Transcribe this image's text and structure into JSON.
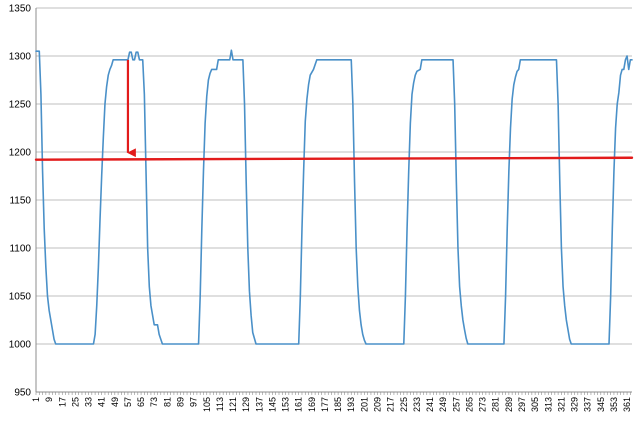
{
  "chart_data": {
    "type": "line",
    "title": "",
    "xlabel": "",
    "ylabel": "",
    "ylim": [
      950,
      1350
    ],
    "yticks": [
      950,
      1000,
      1050,
      1100,
      1150,
      1200,
      1250,
      1300,
      1350
    ],
    "xlim": [
      1,
      364
    ],
    "xticks": [
      "1",
      "9",
      "17",
      "25",
      "33",
      "41",
      "49",
      "57",
      "65",
      "73",
      "81",
      "89",
      "97",
      "105",
      "113",
      "121",
      "129",
      "137",
      "145",
      "153",
      "161",
      "169",
      "177",
      "185",
      "193",
      "201",
      "209",
      "217",
      "225",
      "233",
      "241",
      "249",
      "257",
      "265",
      "273",
      "281",
      "289",
      "297",
      "305",
      "313",
      "321",
      "329",
      "337",
      "345",
      "353",
      "361"
    ],
    "grid": "horizontal",
    "legend": "none",
    "series": [
      {
        "color": "#4a90c8",
        "points": [
          [
            1,
            1305
          ],
          [
            3,
            1305
          ],
          [
            4,
            1260
          ],
          [
            5,
            1180
          ],
          [
            6,
            1120
          ],
          [
            7,
            1080
          ],
          [
            8,
            1050
          ],
          [
            9,
            1035
          ],
          [
            10,
            1025
          ],
          [
            11,
            1015
          ],
          [
            12,
            1005
          ],
          [
            13,
            1000
          ],
          [
            20,
            1000
          ],
          [
            30,
            1000
          ],
          [
            36,
            1000
          ],
          [
            37,
            1010
          ],
          [
            38,
            1040
          ],
          [
            39,
            1080
          ],
          [
            40,
            1130
          ],
          [
            41,
            1175
          ],
          [
            42,
            1215
          ],
          [
            43,
            1250
          ],
          [
            44,
            1268
          ],
          [
            45,
            1280
          ],
          [
            46,
            1286
          ],
          [
            47,
            1290
          ],
          [
            48,
            1296
          ],
          [
            57,
            1296
          ],
          [
            58,
            1304
          ],
          [
            59,
            1304
          ],
          [
            60,
            1296
          ],
          [
            61,
            1296
          ],
          [
            62,
            1304
          ],
          [
            63,
            1304
          ],
          [
            64,
            1296
          ],
          [
            66,
            1296
          ],
          [
            67,
            1260
          ],
          [
            68,
            1180
          ],
          [
            69,
            1100
          ],
          [
            70,
            1060
          ],
          [
            71,
            1040
          ],
          [
            72,
            1030
          ],
          [
            73,
            1020
          ],
          [
            75,
            1020
          ],
          [
            76,
            1010
          ],
          [
            77,
            1005
          ],
          [
            78,
            1000
          ],
          [
            85,
            1000
          ],
          [
            100,
            1000
          ],
          [
            101,
            1050
          ],
          [
            102,
            1120
          ],
          [
            103,
            1180
          ],
          [
            104,
            1230
          ],
          [
            105,
            1258
          ],
          [
            106,
            1275
          ],
          [
            107,
            1282
          ],
          [
            108,
            1286
          ],
          [
            111,
            1286
          ],
          [
            112,
            1296
          ],
          [
            119,
            1296
          ],
          [
            120,
            1306
          ],
          [
            121,
            1296
          ],
          [
            127,
            1296
          ],
          [
            128,
            1250
          ],
          [
            129,
            1170
          ],
          [
            130,
            1100
          ],
          [
            131,
            1055
          ],
          [
            132,
            1030
          ],
          [
            133,
            1012
          ],
          [
            134,
            1006
          ],
          [
            135,
            1000
          ],
          [
            150,
            1000
          ],
          [
            161,
            1000
          ],
          [
            162,
            1050
          ],
          [
            163,
            1120
          ],
          [
            164,
            1180
          ],
          [
            165,
            1232
          ],
          [
            166,
            1255
          ],
          [
            167,
            1270
          ],
          [
            168,
            1280
          ],
          [
            169,
            1283
          ],
          [
            170,
            1286
          ],
          [
            172,
            1296
          ],
          [
            193,
            1296
          ],
          [
            194,
            1250
          ],
          [
            195,
            1170
          ],
          [
            196,
            1100
          ],
          [
            197,
            1060
          ],
          [
            198,
            1035
          ],
          [
            199,
            1020
          ],
          [
            200,
            1010
          ],
          [
            201,
            1004
          ],
          [
            202,
            1000
          ],
          [
            220,
            1000
          ],
          [
            225,
            1000
          ],
          [
            226,
            1050
          ],
          [
            227,
            1120
          ],
          [
            228,
            1180
          ],
          [
            229,
            1230
          ],
          [
            230,
            1260
          ],
          [
            231,
            1272
          ],
          [
            232,
            1280
          ],
          [
            233,
            1284
          ],
          [
            235,
            1286
          ],
          [
            236,
            1296
          ],
          [
            250,
            1296
          ],
          [
            255,
            1296
          ],
          [
            256,
            1250
          ],
          [
            257,
            1170
          ],
          [
            258,
            1100
          ],
          [
            259,
            1060
          ],
          [
            260,
            1040
          ],
          [
            261,
            1025
          ],
          [
            262,
            1015
          ],
          [
            263,
            1006
          ],
          [
            264,
            1000
          ],
          [
            280,
            1000
          ],
          [
            286,
            1000
          ],
          [
            287,
            1050
          ],
          [
            288,
            1120
          ],
          [
            289,
            1180
          ],
          [
            290,
            1225
          ],
          [
            291,
            1255
          ],
          [
            292,
            1270
          ],
          [
            293,
            1278
          ],
          [
            294,
            1284
          ],
          [
            295,
            1286
          ],
          [
            296,
            1296
          ],
          [
            318,
            1296
          ],
          [
            319,
            1250
          ],
          [
            320,
            1170
          ],
          [
            321,
            1100
          ],
          [
            322,
            1060
          ],
          [
            323,
            1040
          ],
          [
            324,
            1025
          ],
          [
            325,
            1015
          ],
          [
            326,
            1005
          ],
          [
            327,
            1000
          ],
          [
            345,
            1000
          ],
          [
            350,
            1000
          ],
          [
            351,
            1050
          ],
          [
            352,
            1120
          ],
          [
            353,
            1180
          ],
          [
            354,
            1225
          ],
          [
            355,
            1250
          ],
          [
            356,
            1262
          ],
          [
            357,
            1280
          ],
          [
            358,
            1286
          ],
          [
            359,
            1286
          ],
          [
            360,
            1296
          ],
          [
            361,
            1300
          ],
          [
            362,
            1286
          ],
          [
            363,
            1296
          ],
          [
            364,
            1296
          ]
        ]
      },
      {
        "color": "#e21b1b",
        "points": [
          [
            1,
            1192
          ],
          [
            364,
            1194
          ]
        ]
      }
    ],
    "annotations": [
      {
        "type": "arrow",
        "color": "#e21b1b",
        "x": 57,
        "y_from": 1296,
        "y_to": 1193
      }
    ]
  }
}
